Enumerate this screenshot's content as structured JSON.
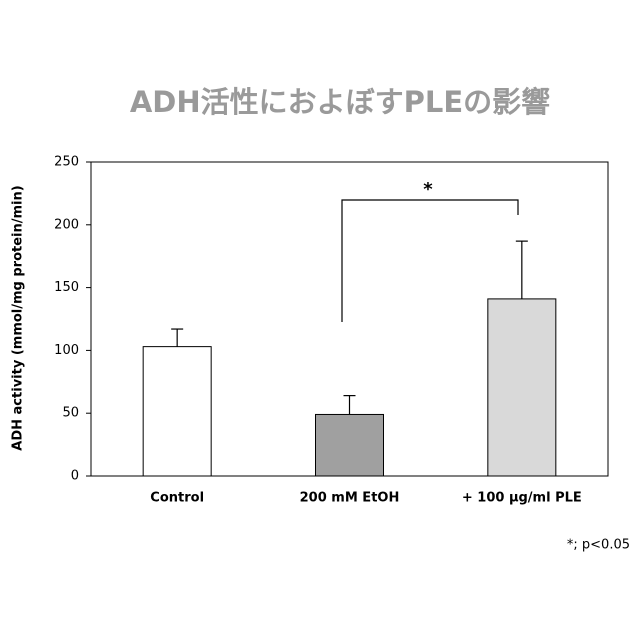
{
  "chart_data": {
    "type": "bar",
    "title": "ADH活性におよぼすPLEの影響",
    "y_label": "ADH activity (mmol/mg protein/min)",
    "categories": [
      "Control",
      "200 mM EtOH",
      "+ 100 µg/ml PLE"
    ],
    "values": [
      103,
      49,
      141
    ],
    "errors": [
      14,
      15,
      46
    ],
    "colors": [
      "#ffffff",
      "#a0a0a0",
      "#d9d9d9"
    ],
    "ylim": [
      0,
      250
    ],
    "yticks": [
      0,
      50,
      100,
      150,
      200,
      250
    ],
    "significance": "*",
    "footnote": "*; p<0.05"
  }
}
